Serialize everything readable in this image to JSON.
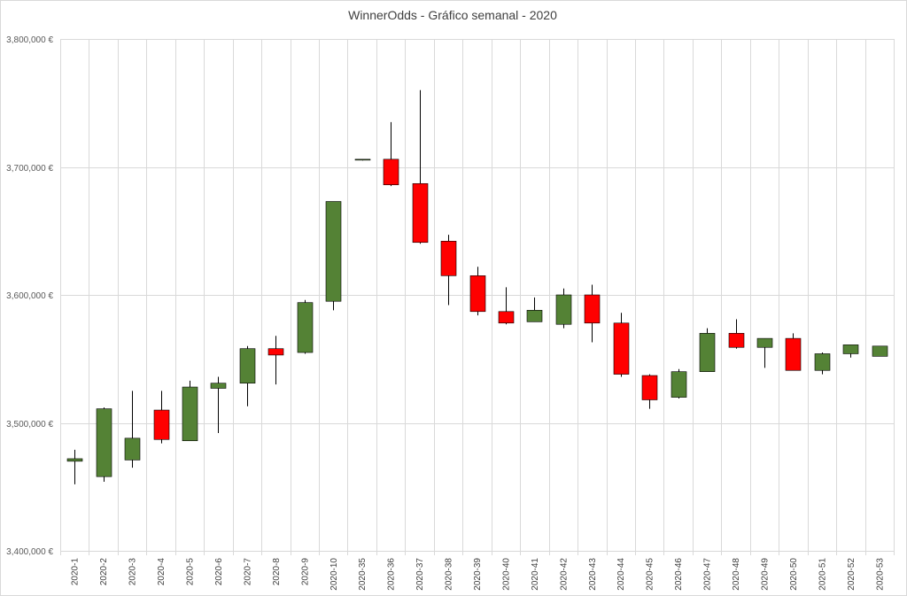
{
  "chart_data": {
    "type": "candlestick",
    "title": "WinnerOdds - Gráfico semanal - 2020",
    "xlabel": "",
    "ylabel": "",
    "ylim": [
      3400000,
      3800000
    ],
    "yticks": [
      3400000,
      3500000,
      3600000,
      3700000,
      3800000
    ],
    "ytick_labels": [
      "3,400,000 €",
      "3,500,000 €",
      "3,600,000 €",
      "3,700,000 €",
      "3,800,000 €"
    ],
    "grid": true,
    "colors": {
      "up": "#548235",
      "down": "#ff0000",
      "wick": "#000000",
      "grid": "#d9d9d9"
    },
    "categories": [
      "2020-1",
      "2020-2",
      "2020-3",
      "2020-4",
      "2020-5",
      "2020-6",
      "2020-7",
      "2020-8",
      "2020-9",
      "2020-10",
      "2020-35",
      "2020-36",
      "2020-37",
      "2020-38",
      "2020-39",
      "2020-40",
      "2020-41",
      "2020-42",
      "2020-43",
      "2020-44",
      "2020-45",
      "2020-46",
      "2020-47",
      "2020-48",
      "2020-49",
      "2020-50",
      "2020-51",
      "2020-52",
      "2020-53"
    ],
    "open": [
      3470000,
      3458000,
      3471000,
      3510000,
      3486000,
      3527000,
      3531000,
      3558000,
      3555000,
      3595000,
      3706000,
      3706000,
      3687000,
      3642000,
      3615000,
      3587000,
      3579000,
      3577000,
      3600000,
      3578000,
      3537000,
      3520000,
      3540000,
      3570000,
      3559000,
      3566000,
      3541000,
      3554000,
      3552000
    ],
    "high": [
      3479000,
      3512000,
      3525000,
      3525000,
      3533000,
      3536000,
      3560000,
      3568000,
      3596000,
      3673000,
      3706000,
      3735000,
      3760000,
      3647000,
      3622000,
      3606000,
      3598000,
      3605000,
      3608000,
      3586000,
      3538000,
      3542000,
      3574000,
      3581000,
      3566000,
      3570000,
      3555000,
      3561000,
      3560000
    ],
    "low": [
      3452000,
      3454000,
      3465000,
      3484000,
      3486000,
      3492000,
      3513000,
      3530000,
      3554000,
      3588000,
      3705000,
      3685000,
      3640000,
      3592000,
      3584000,
      3577000,
      3579000,
      3574000,
      3563000,
      3536000,
      3511000,
      3519000,
      3540000,
      3558000,
      3543000,
      3541000,
      3538000,
      3551000,
      3552000
    ],
    "close": [
      3472000,
      3511000,
      3488000,
      3487000,
      3528000,
      3531000,
      3558000,
      3553000,
      3594000,
      3673000,
      3706000,
      3686000,
      3641000,
      3615000,
      3587000,
      3578000,
      3588000,
      3600000,
      3578000,
      3538000,
      3518000,
      3540000,
      3570000,
      3559000,
      3566000,
      3541000,
      3554000,
      3561000,
      3560000
    ]
  }
}
